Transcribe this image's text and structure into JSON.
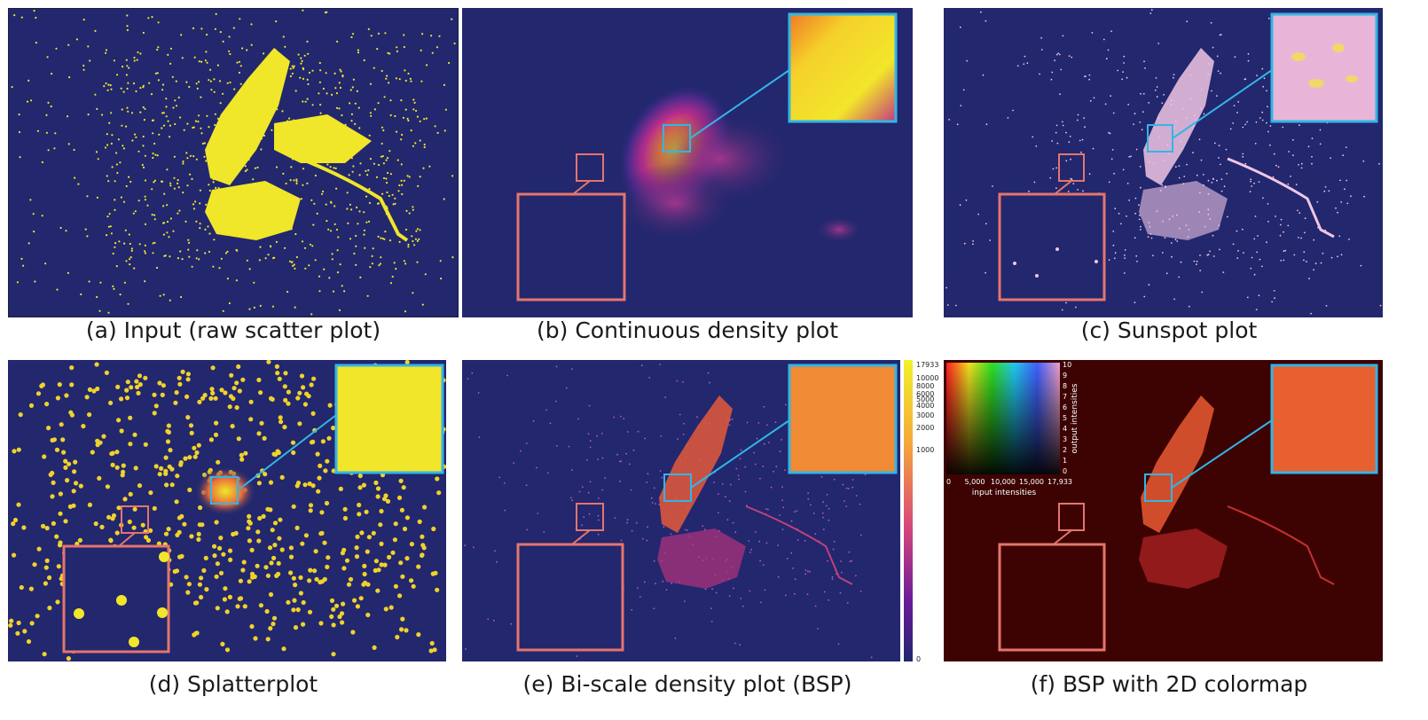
{
  "panels": [
    {
      "id": "a",
      "caption": "(a) Input (raw scatter plot)"
    },
    {
      "id": "b",
      "caption": "(b) Continuous density plot"
    },
    {
      "id": "c",
      "caption": "(c) Sunspot plot"
    },
    {
      "id": "d",
      "caption": "(d) Splatterplot"
    },
    {
      "id": "e",
      "caption": "(e) Bi-scale density plot (BSP)"
    },
    {
      "id": "f",
      "caption": "(f) BSP with 2D colormap"
    }
  ],
  "colorbar": {
    "ticks": [
      "17933",
      "10000",
      "8000",
      "6000",
      "5000",
      "4000",
      "3000",
      "2000",
      "1000",
      "0"
    ]
  },
  "colormap2d": {
    "x_ticks": [
      "0",
      "5,000",
      "10,000",
      "15,000",
      "17,933"
    ],
    "xlabel": "input intensities",
    "y_ticks": [
      "10",
      "9",
      "8",
      "7",
      "6",
      "5",
      "4",
      "3",
      "2",
      "1",
      "0"
    ],
    "ylabel": "output intensities"
  },
  "colors": {
    "background_navy": "#22276e",
    "background_dark_red": "#3d0303",
    "yellow": "#f0e62a",
    "zoom_box_blue": "#33b5e5",
    "zoom_box_red": "#e5756c",
    "sunspot_pink": "#f0c6e4"
  }
}
